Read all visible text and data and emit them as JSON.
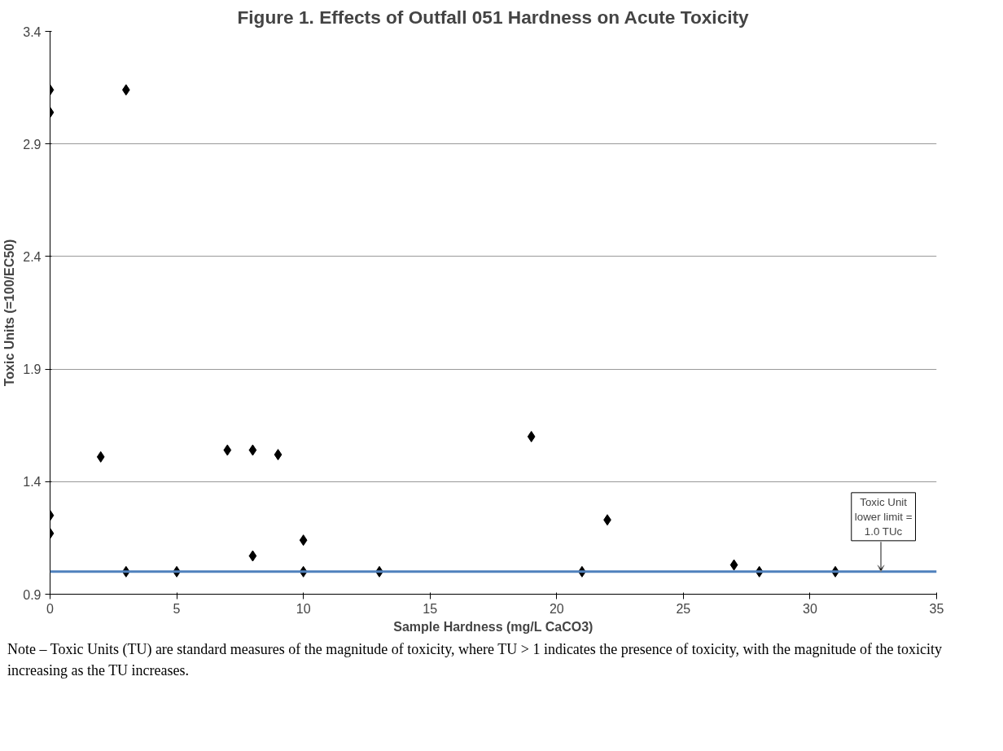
{
  "chart_data": {
    "type": "scatter",
    "title": "Figure 1. Effects of Outfall 051 Hardness on Acute Toxicity",
    "xlabel": "Sample Hardness (mg/L CaCO3)",
    "ylabel": "Toxic Units (=100/EC50)",
    "x": [
      0,
      0,
      0,
      0,
      2,
      3,
      3,
      5,
      7,
      8,
      8,
      9,
      10,
      10,
      13,
      19,
      21,
      22,
      27,
      28,
      31
    ],
    "series": [
      {
        "color": "#000000",
        "values": [
          3.14,
          3.04,
          1.25,
          1.17,
          1.51,
          3.14,
          1.0,
          1.0,
          1.54,
          1.54,
          1.07,
          1.52,
          1.14,
          1.0,
          1.0,
          1.6,
          1.0,
          1.23,
          1.03,
          1.0,
          1.0
        ]
      }
    ],
    "xlim": [
      0,
      35
    ],
    "ylim": [
      0.9,
      3.4
    ],
    "xticks": [
      0,
      5,
      10,
      15,
      20,
      25,
      30,
      35
    ],
    "yticks": [
      0.9,
      1.4,
      1.9,
      2.4,
      2.9,
      3.4
    ],
    "grid": "y",
    "marker": "diamond",
    "ref_lines": [
      {
        "axis": "y",
        "value": 1.0,
        "label": "Toxic Unit\nlower limit =\n1.0 TUc",
        "color": "#4f81bd"
      }
    ],
    "annotations": [
      "Note – Toxic Units (TU) are standard measures of the magnitude of toxicity, where TU > 1 indicates the presence of toxicity, with the magnitude of the toxicity increasing as the TU increases."
    ]
  }
}
